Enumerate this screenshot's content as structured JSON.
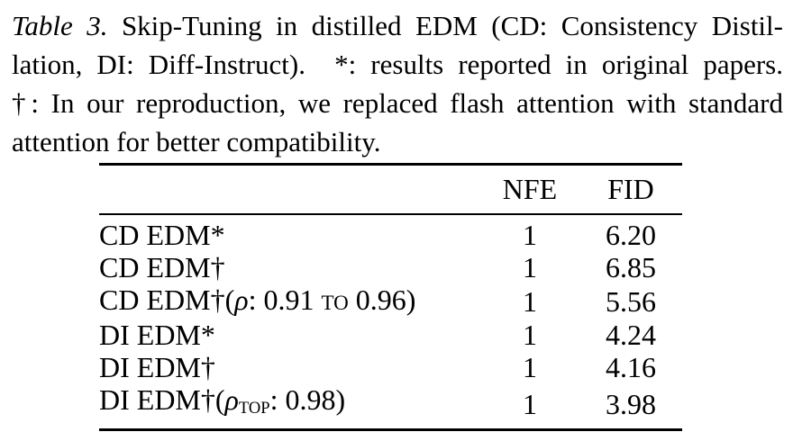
{
  "page": {
    "background": "#ffffff",
    "text_color": "#000000"
  },
  "caption": {
    "label": "Table 3.",
    "text": "Skip-Tuning in distilled EDM (CD: Consistency Distillation, DI: Diff-Instruct). *: results reported in original papers. †: In our reproduction, we replaced flash attention with standard attention for better compatibility.",
    "lines": [
      {
        "label": "Table 3.",
        "rest": " Skip-Tuning in distilled EDM (CD: Consistency Distil-"
      },
      {
        "rest": "lation, DI: Diff-Instruct).  *: results reported in original papers."
      },
      {
        "rest": "†: In our reproduction, we replaced flash attention with standard"
      },
      {
        "rest": "attention for better compatibility."
      }
    ]
  },
  "table": {
    "columns": [
      {
        "key": "method",
        "label": ""
      },
      {
        "key": "nfe",
        "label": "NFE"
      },
      {
        "key": "fid",
        "label": "FID"
      }
    ],
    "rows": [
      {
        "method_text": "CD EDM*",
        "method_parts": [
          {
            "t": "CD EDM*"
          }
        ],
        "nfe": "1",
        "fid": "6.20"
      },
      {
        "method_text": "CD EDM†",
        "method_parts": [
          {
            "t": "CD EDM†"
          }
        ],
        "nfe": "1",
        "fid": "6.85"
      },
      {
        "method_text": "CD EDM†(ρ: 0.91 TO 0.96)",
        "method_parts": [
          {
            "t": "CD EDM†("
          },
          {
            "t": "ρ",
            "s": "i"
          },
          {
            "t": ": 0.91 "
          },
          {
            "t": "TO",
            "s": "sc"
          },
          {
            "t": " 0.96)"
          }
        ],
        "nfe": "1",
        "fid": "5.56"
      },
      {
        "method_text": "DI EDM*",
        "method_parts": [
          {
            "t": "DI EDM*"
          }
        ],
        "nfe": "1",
        "fid": "4.24"
      },
      {
        "method_text": "DI EDM†",
        "method_parts": [
          {
            "t": "DI EDM†"
          }
        ],
        "nfe": "1",
        "fid": "4.16"
      },
      {
        "method_text": "DI EDM†(ρTOP: 0.98)",
        "method_parts": [
          {
            "t": "DI EDM†("
          },
          {
            "t": "ρ",
            "s": "i"
          },
          {
            "t": "TOP",
            "s": "sub"
          },
          {
            "t": ": 0.98)"
          }
        ],
        "nfe": "1",
        "fid": "3.98"
      }
    ]
  }
}
